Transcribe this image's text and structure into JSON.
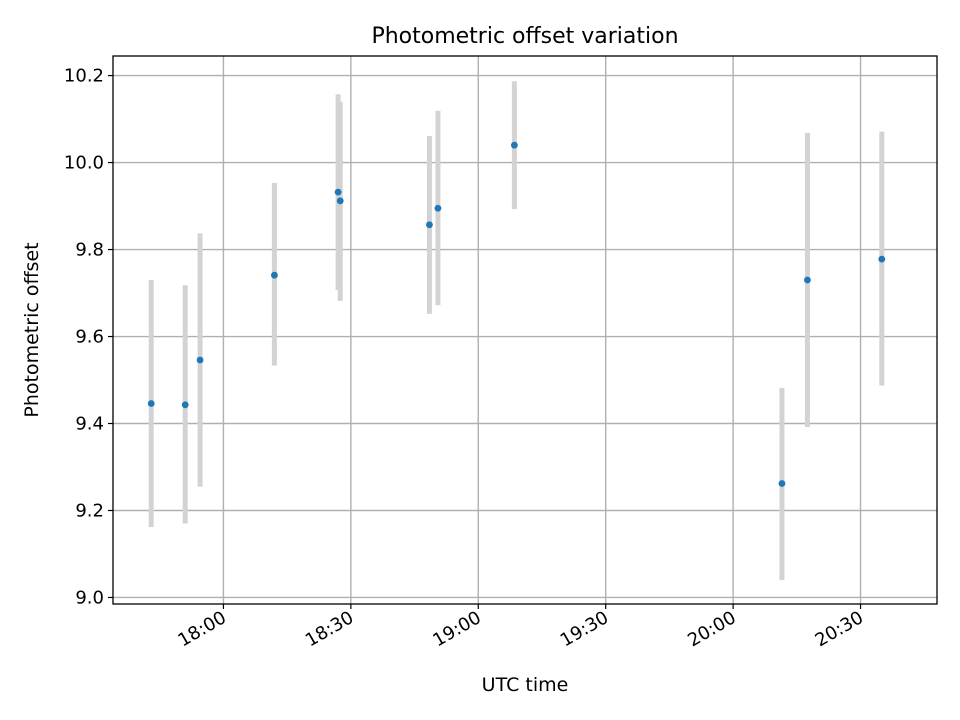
{
  "chart_data": {
    "type": "scatter",
    "title": "Photometric offset variation",
    "xlabel": "UTC time",
    "ylabel": "Photometric offset",
    "x_ticks": [
      "18:00",
      "18:30",
      "19:00",
      "19:30",
      "20:00",
      "20:30"
    ],
    "y_ticks": [
      "9.0",
      "9.2",
      "9.4",
      "9.6",
      "9.8",
      "10.0",
      "10.2"
    ],
    "xlim": [
      "17:34:00",
      "20:48:00"
    ],
    "ylim": [
      8.985,
      10.245
    ],
    "grid": true,
    "colors": {
      "points": "#1f77b4",
      "error_bars": "#d3d3d3",
      "grid": "#b0b0b0"
    },
    "points": [
      {
        "x": "17:43:00",
        "y": 9.446,
        "yerr_low": 9.162,
        "yerr_high": 9.73
      },
      {
        "x": "17:51:00",
        "y": 9.443,
        "yerr_low": 9.17,
        "yerr_high": 9.718
      },
      {
        "x": "17:54:30",
        "y": 9.546,
        "yerr_low": 9.255,
        "yerr_high": 9.837
      },
      {
        "x": "18:12:00",
        "y": 9.741,
        "yerr_low": 9.533,
        "yerr_high": 9.953
      },
      {
        "x": "18:27:00",
        "y": 9.932,
        "yerr_low": 9.707,
        "yerr_high": 10.157
      },
      {
        "x": "18:27:30",
        "y": 9.912,
        "yerr_low": 9.682,
        "yerr_high": 10.14
      },
      {
        "x": "18:48:30",
        "y": 9.857,
        "yerr_low": 9.652,
        "yerr_high": 10.061
      },
      {
        "x": "18:50:30",
        "y": 9.895,
        "yerr_low": 9.672,
        "yerr_high": 10.119
      },
      {
        "x": "19:08:30",
        "y": 10.04,
        "yerr_low": 9.893,
        "yerr_high": 10.187
      },
      {
        "x": "20:11:30",
        "y": 9.262,
        "yerr_low": 9.04,
        "yerr_high": 9.482
      },
      {
        "x": "20:17:30",
        "y": 9.73,
        "yerr_low": 9.392,
        "yerr_high": 10.068
      },
      {
        "x": "20:35:00",
        "y": 9.778,
        "yerr_low": 9.487,
        "yerr_high": 10.071
      }
    ]
  }
}
